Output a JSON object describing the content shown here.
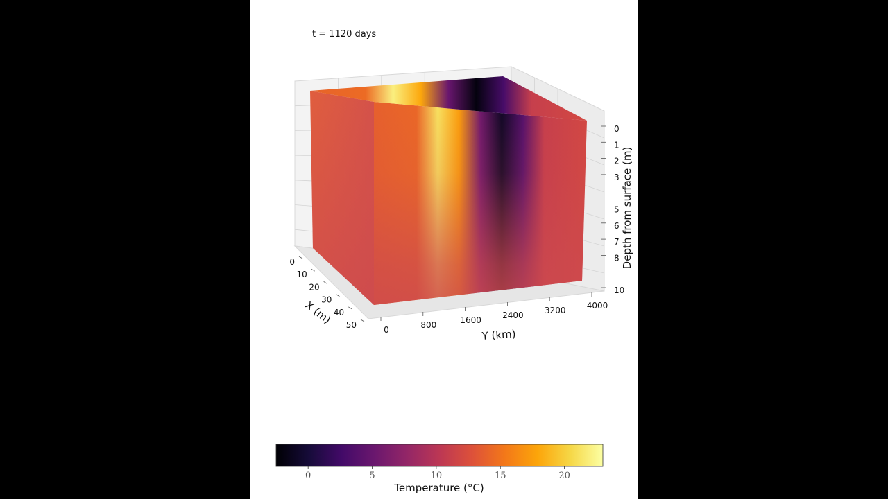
{
  "chart_data": {
    "type": "3d-volume",
    "time_label": "t = 1120 days",
    "x_axis": {
      "label": "X (m)",
      "ticks": [
        "0",
        "10",
        "20",
        "30",
        "40",
        "50"
      ],
      "range": [
        0,
        50
      ]
    },
    "y_axis": {
      "label": "Y (km)",
      "ticks": [
        "0",
        "800",
        "1600",
        "2400",
        "3200",
        "4000"
      ],
      "range": [
        0,
        4000
      ]
    },
    "z_axis": {
      "label": "Depth from surface (m)",
      "ticks": [
        "0",
        "1",
        "2",
        "3",
        "5",
        "6",
        "7",
        "8",
        "10"
      ],
      "range": [
        0,
        10
      ],
      "inverted": true
    },
    "colormap": "inferno",
    "colorbar": {
      "label": "Temperature (°C)",
      "ticks": [
        "0",
        "5",
        "10",
        "15",
        "20"
      ],
      "tick_values": [
        0,
        5,
        10,
        15,
        20
      ],
      "range": [
        -2.5,
        23
      ]
    },
    "surface_temperature_profile": {
      "y": [
        0,
        800,
        1200,
        1600,
        2000,
        2400,
        2800,
        3200,
        4000
      ],
      "temperature": [
        14,
        14.5,
        22,
        18,
        5,
        -2,
        3,
        11,
        12
      ]
    },
    "deep_temperature": 11.5,
    "grid": true
  }
}
